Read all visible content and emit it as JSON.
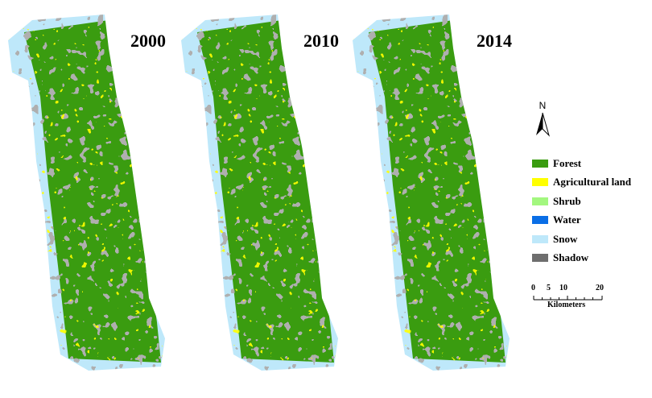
{
  "panels": [
    {
      "year": "2000"
    },
    {
      "year": "2010"
    },
    {
      "year": "2014"
    }
  ],
  "north_arrow": {
    "label": "N"
  },
  "legend": [
    {
      "label": "Forest",
      "color": "#3a9c10"
    },
    {
      "label": "Agricultural land",
      "color": "#ffff00"
    },
    {
      "label": "Shrub",
      "color": "#a3f77f"
    },
    {
      "label": "Water",
      "color": "#0a6ee6"
    },
    {
      "label": "Snow",
      "color": "#bee8fa"
    },
    {
      "label": "Shadow",
      "color": "#6e6e6e"
    }
  ],
  "scale_bar": {
    "ticks": [
      "0",
      "5",
      "10",
      "20"
    ],
    "unit": "Kilometers"
  }
}
